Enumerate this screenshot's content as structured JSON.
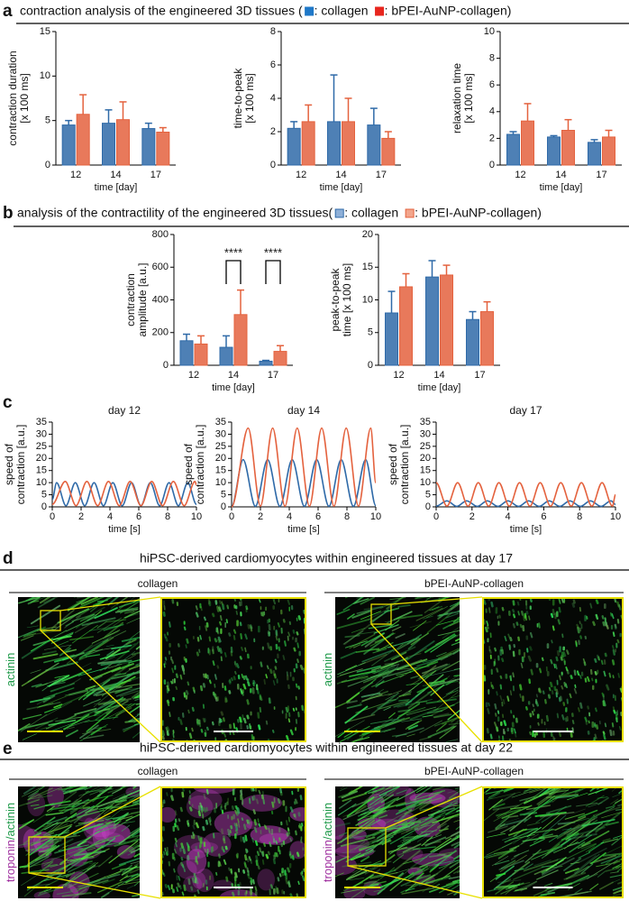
{
  "panel_labels": [
    "a",
    "b",
    "c",
    "d",
    "e"
  ],
  "headers": [
    {
      "title": "contraction analysis of the engineered 3D tissues (",
      "legend": [
        {
          "text": ": collagen",
          "color": "#1f78c8",
          "border": "#1f78c8"
        },
        {
          "text": ": bPEI-AuNP-collagen)",
          "color": "#e8261e",
          "border": "#e8261e"
        }
      ]
    },
    {
      "title": "analysis of the contractility of the engineered 3D tissues(",
      "legend": [
        {
          "text": ": collagen",
          "color": "#8fb0d8",
          "border": "#2f6aa8"
        },
        {
          "text": ": bPEI-AuNP-collagen)",
          "color": "#f2a58c",
          "border": "#e4623e"
        }
      ]
    }
  ],
  "chart_data": [
    {
      "type": "bar",
      "ylabel": [
        "contraction duration",
        "[x 100 ms]"
      ],
      "xlabel": "time [day]",
      "categories": [
        "12",
        "14",
        "17"
      ],
      "ylim": [
        0,
        15
      ],
      "yticks": [
        0,
        5,
        10,
        15
      ],
      "series": [
        {
          "color": "#2f6aa8",
          "values": [
            4.5,
            4.7,
            4.1
          ],
          "errors": [
            0.5,
            1.5,
            0.6
          ]
        },
        {
          "color": "#e4623e",
          "values": [
            5.7,
            5.1,
            3.7
          ],
          "errors": [
            2.2,
            2.0,
            0.5
          ]
        }
      ]
    },
    {
      "type": "bar",
      "ylabel": [
        "time-to-peak",
        "[x 100 ms]"
      ],
      "xlabel": "time [day]",
      "categories": [
        "12",
        "14",
        "17"
      ],
      "ylim": [
        0,
        8
      ],
      "yticks": [
        0,
        2,
        4,
        6,
        8
      ],
      "series": [
        {
          "color": "#2f6aa8",
          "values": [
            2.2,
            2.6,
            2.4
          ],
          "errors": [
            0.4,
            2.8,
            1.0
          ]
        },
        {
          "color": "#e4623e",
          "values": [
            2.6,
            2.6,
            1.6
          ],
          "errors": [
            1.0,
            1.4,
            0.4
          ]
        }
      ]
    },
    {
      "type": "bar",
      "ylabel": [
        "relaxation time",
        "[x 100 ms]"
      ],
      "xlabel": "time [day]",
      "categories": [
        "12",
        "14",
        "17"
      ],
      "ylim": [
        0,
        10
      ],
      "yticks": [
        0,
        2,
        4,
        6,
        8,
        10
      ],
      "series": [
        {
          "color": "#2f6aa8",
          "values": [
            2.3,
            2.1,
            1.7
          ],
          "errors": [
            0.2,
            0.1,
            0.2
          ]
        },
        {
          "color": "#e4623e",
          "values": [
            3.3,
            2.6,
            2.1
          ],
          "errors": [
            1.3,
            0.8,
            0.5
          ]
        }
      ]
    },
    {
      "type": "bar",
      "ylabel": [
        "contraction",
        "amplitude [a.u.]"
      ],
      "xlabel": "time [day]",
      "categories": [
        "12",
        "14",
        "17"
      ],
      "ylim": [
        0,
        800
      ],
      "yticks": [
        0,
        200,
        400,
        600,
        800
      ],
      "series": [
        {
          "color": "#2f6aa8",
          "values": [
            150,
            110,
            25
          ],
          "errors": [
            40,
            70,
            5
          ]
        },
        {
          "color": "#e4623e",
          "values": [
            130,
            310,
            85
          ],
          "errors": [
            50,
            150,
            35
          ]
        }
      ],
      "annotations": [
        {
          "text": "****",
          "x": "14",
          "y": 640
        },
        {
          "text": "****",
          "x": "17",
          "y": 640
        }
      ]
    },
    {
      "type": "bar",
      "ylabel": [
        "peak-to-peak",
        "time [x 100 ms]"
      ],
      "xlabel": "time [day]",
      "categories": [
        "12",
        "14",
        "17"
      ],
      "ylim": [
        0,
        20
      ],
      "yticks": [
        0,
        5,
        10,
        15,
        20
      ],
      "series": [
        {
          "color": "#2f6aa8",
          "values": [
            8,
            13.5,
            7
          ],
          "errors": [
            3.3,
            2.5,
            1.2
          ]
        },
        {
          "color": "#e4623e",
          "values": [
            12,
            13.8,
            8.2
          ],
          "errors": [
            2,
            1.5,
            1.5
          ]
        }
      ]
    },
    {
      "type": "line",
      "title": "day 12",
      "ylabel": [
        "speed of",
        "contraction [a.u.]"
      ],
      "xlabel": "time [s]",
      "xlim": [
        0,
        10
      ],
      "xticks": [
        0,
        2,
        4,
        6,
        8,
        10
      ],
      "ylim": [
        0,
        35
      ],
      "yticks": [
        0,
        5,
        10,
        15,
        20,
        25,
        30,
        35
      ],
      "series": [
        {
          "color": "#2f6aa8",
          "x": [
            0,
            0.3,
            0.95,
            1.6,
            2.25,
            2.9,
            3.55,
            4.2,
            4.85,
            5.5,
            6.15,
            6.8,
            7.45,
            8.1,
            8.75,
            9.4,
            10
          ],
          "values": [
            3,
            10,
            0.5,
            10,
            0.5,
            10,
            0.5,
            10,
            0.5,
            10,
            0.5,
            10,
            0.5,
            10,
            0.5,
            10,
            1
          ]
        },
        {
          "color": "#e4623e",
          "x": [
            0,
            0.9,
            1.65,
            2.4,
            3.15,
            3.9,
            4.65,
            5.4,
            6.15,
            6.9,
            7.65,
            8.4,
            9.15,
            9.9,
            10
          ],
          "values": [
            1,
            10.5,
            0.5,
            10.5,
            0.5,
            10.5,
            0.5,
            10.5,
            0.5,
            10.5,
            0.5,
            10.5,
            0.5,
            10.5,
            9
          ]
        }
      ]
    },
    {
      "type": "line",
      "title": "day 14",
      "ylabel": [
        "speed of",
        "contraction [a.u.]"
      ],
      "xlabel": "time [s]",
      "xlim": [
        0,
        10
      ],
      "xticks": [
        0,
        2,
        4,
        6,
        8,
        10
      ],
      "ylim": [
        0,
        35
      ],
      "yticks": [
        0,
        5,
        10,
        15,
        20,
        25,
        30,
        35
      ],
      "series": [
        {
          "color": "#2f6aa8",
          "x": [
            0,
            0.8,
            1.65,
            2.5,
            3.35,
            4.2,
            5.05,
            5.9,
            6.75,
            7.6,
            8.45,
            9.3,
            10
          ],
          "values": [
            0,
            19.5,
            0.2,
            19.5,
            0.2,
            19.5,
            0.2,
            19.5,
            0.2,
            19.5,
            0.2,
            19.5,
            0.5
          ]
        },
        {
          "color": "#e4623e",
          "x": [
            0,
            1.15,
            2.0,
            2.85,
            3.7,
            4.55,
            5.4,
            6.25,
            7.1,
            7.95,
            8.8,
            9.65,
            10
          ],
          "values": [
            0,
            32.5,
            0.3,
            32.5,
            0.3,
            32.5,
            0.3,
            32.5,
            0.3,
            32.5,
            0.3,
            32.5,
            10
          ]
        }
      ]
    },
    {
      "type": "line",
      "title": "day 17",
      "ylabel": [
        "speed of",
        "contraction [a.u.]"
      ],
      "xlabel": "time [s]",
      "xlim": [
        0,
        10
      ],
      "xticks": [
        0,
        2,
        4,
        6,
        8,
        10
      ],
      "ylim": [
        0,
        35
      ],
      "yticks": [
        0,
        5,
        10,
        15,
        20,
        25,
        30,
        35
      ],
      "series": [
        {
          "color": "#2f6aa8",
          "x": [
            0,
            0.6,
            1.15,
            1.7,
            2.3,
            2.85,
            3.45,
            4.0,
            4.6,
            5.15,
            5.75,
            6.3,
            6.9,
            7.45,
            8.05,
            8.6,
            9.2,
            9.75,
            10
          ],
          "values": [
            0.3,
            2.5,
            0.2,
            2.5,
            0.2,
            2.5,
            0.2,
            2.5,
            0.2,
            2.5,
            0.2,
            2.5,
            0.2,
            2.5,
            0.2,
            2.5,
            0.2,
            2.5,
            1
          ]
        },
        {
          "color": "#e4623e",
          "x": [
            0,
            0.6,
            1.2,
            1.78,
            2.35,
            2.93,
            3.5,
            4.08,
            4.65,
            5.23,
            5.8,
            6.38,
            6.95,
            7.53,
            8.1,
            8.68,
            9.25,
            9.83,
            10
          ],
          "values": [
            10,
            0.3,
            10,
            0.3,
            10,
            0.3,
            10,
            0.3,
            10,
            0.3,
            10,
            0.3,
            10,
            0.3,
            10,
            0.3,
            10,
            0.3,
            5
          ]
        }
      ]
    }
  ],
  "image_panels": [
    {
      "title": "hiPSC-derived cardiomyocytes within engineered tissues at day 17",
      "groups": [
        "collagen",
        "bPEI-AuNP-collagen"
      ],
      "stain": [
        {
          "text": "actinin",
          "color": "#1f9a4a"
        }
      ]
    },
    {
      "title": "hiPSC-derived cardiomyocytes within engineered tissues at day 22",
      "groups": [
        "collagen",
        "bPEI-AuNP-collagen"
      ],
      "stain": [
        {
          "text": "troponin",
          "color": "#a030a0"
        },
        {
          "text": "/actinin",
          "color": "#1f9a4a"
        }
      ]
    }
  ]
}
